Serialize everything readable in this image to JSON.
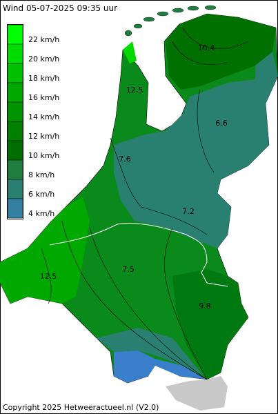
{
  "header": {
    "title": "Wind 05-07-2025  09:35 uur"
  },
  "legend": {
    "items": [
      {
        "label": "22 km/h",
        "color": "#00ff00"
      },
      {
        "label": "20 km/h",
        "color": "#00dc00"
      },
      {
        "label": "18 km/h",
        "color": "#00c000"
      },
      {
        "label": "16 km/h",
        "color": "#00a800"
      },
      {
        "label": "14 km/h",
        "color": "#009400"
      },
      {
        "label": "12 km/h",
        "color": "#008000"
      },
      {
        "label": "10 km/h",
        "color": "#006e00"
      },
      {
        "label": "8 km/h",
        "color": "#1f7d3e"
      },
      {
        "label": "6 km/h",
        "color": "#2a8070"
      },
      {
        "label": "4 km/h",
        "color": "#3380a0"
      }
    ]
  },
  "contours": [
    {
      "text": "10.4"
    },
    {
      "text": "12.5"
    },
    {
      "text": "6.6"
    },
    {
      "text": "7.6"
    },
    {
      "text": "7.2"
    },
    {
      "text": "12.5"
    },
    {
      "text": "7.5"
    },
    {
      "text": "9.8"
    }
  ],
  "footer": {
    "copyright": "Copyright 2025 Hetweeractueel.nl (V2.0)"
  }
}
